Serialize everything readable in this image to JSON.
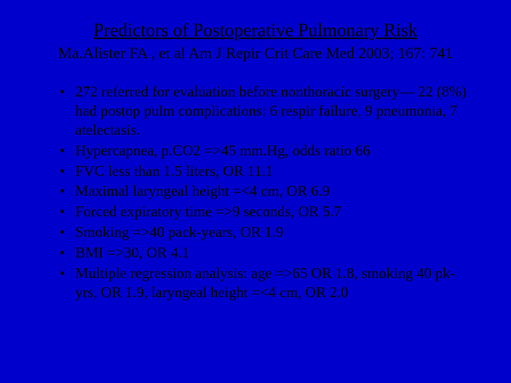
{
  "slide": {
    "title": "Predictors of Postoperative Pulmonary Risk",
    "citation": "Ma.Alister FA , et al Am J Repir Crit Care Med 2003; 167: 741",
    "bullets": [
      "272 referred for evaluation before nonthoracic surgery— 22 (8%) had postop pulm complications: 6 respir failure, 9 pneumonia, 7 atelectasis.",
      "Hypercapnea, p.CO2 =>45 mm.Hg,  odds ratio 66",
      "FVC less than 1.5 liters,    OR 11.1",
      "Maximal laryngeal height =<4 cm, OR 6.9",
      "Forced expiratory time =>9 seconds, OR 5.7",
      "Smoking =>40 pack-years, OR 1.9",
      "BMI =>30, OR 4.1",
      "Multiple regression analysis: age =>65  OR 1.8,  smoking 40 pk-yrs, OR 1.9,   laryngeal height =<4 cm, OR 2.0"
    ],
    "colors": {
      "background": "#0000cc",
      "text": "#000000"
    },
    "typography": {
      "font_family": "Times New Roman",
      "title_fontsize": 26,
      "citation_fontsize": 22,
      "bullet_fontsize": 21
    }
  }
}
